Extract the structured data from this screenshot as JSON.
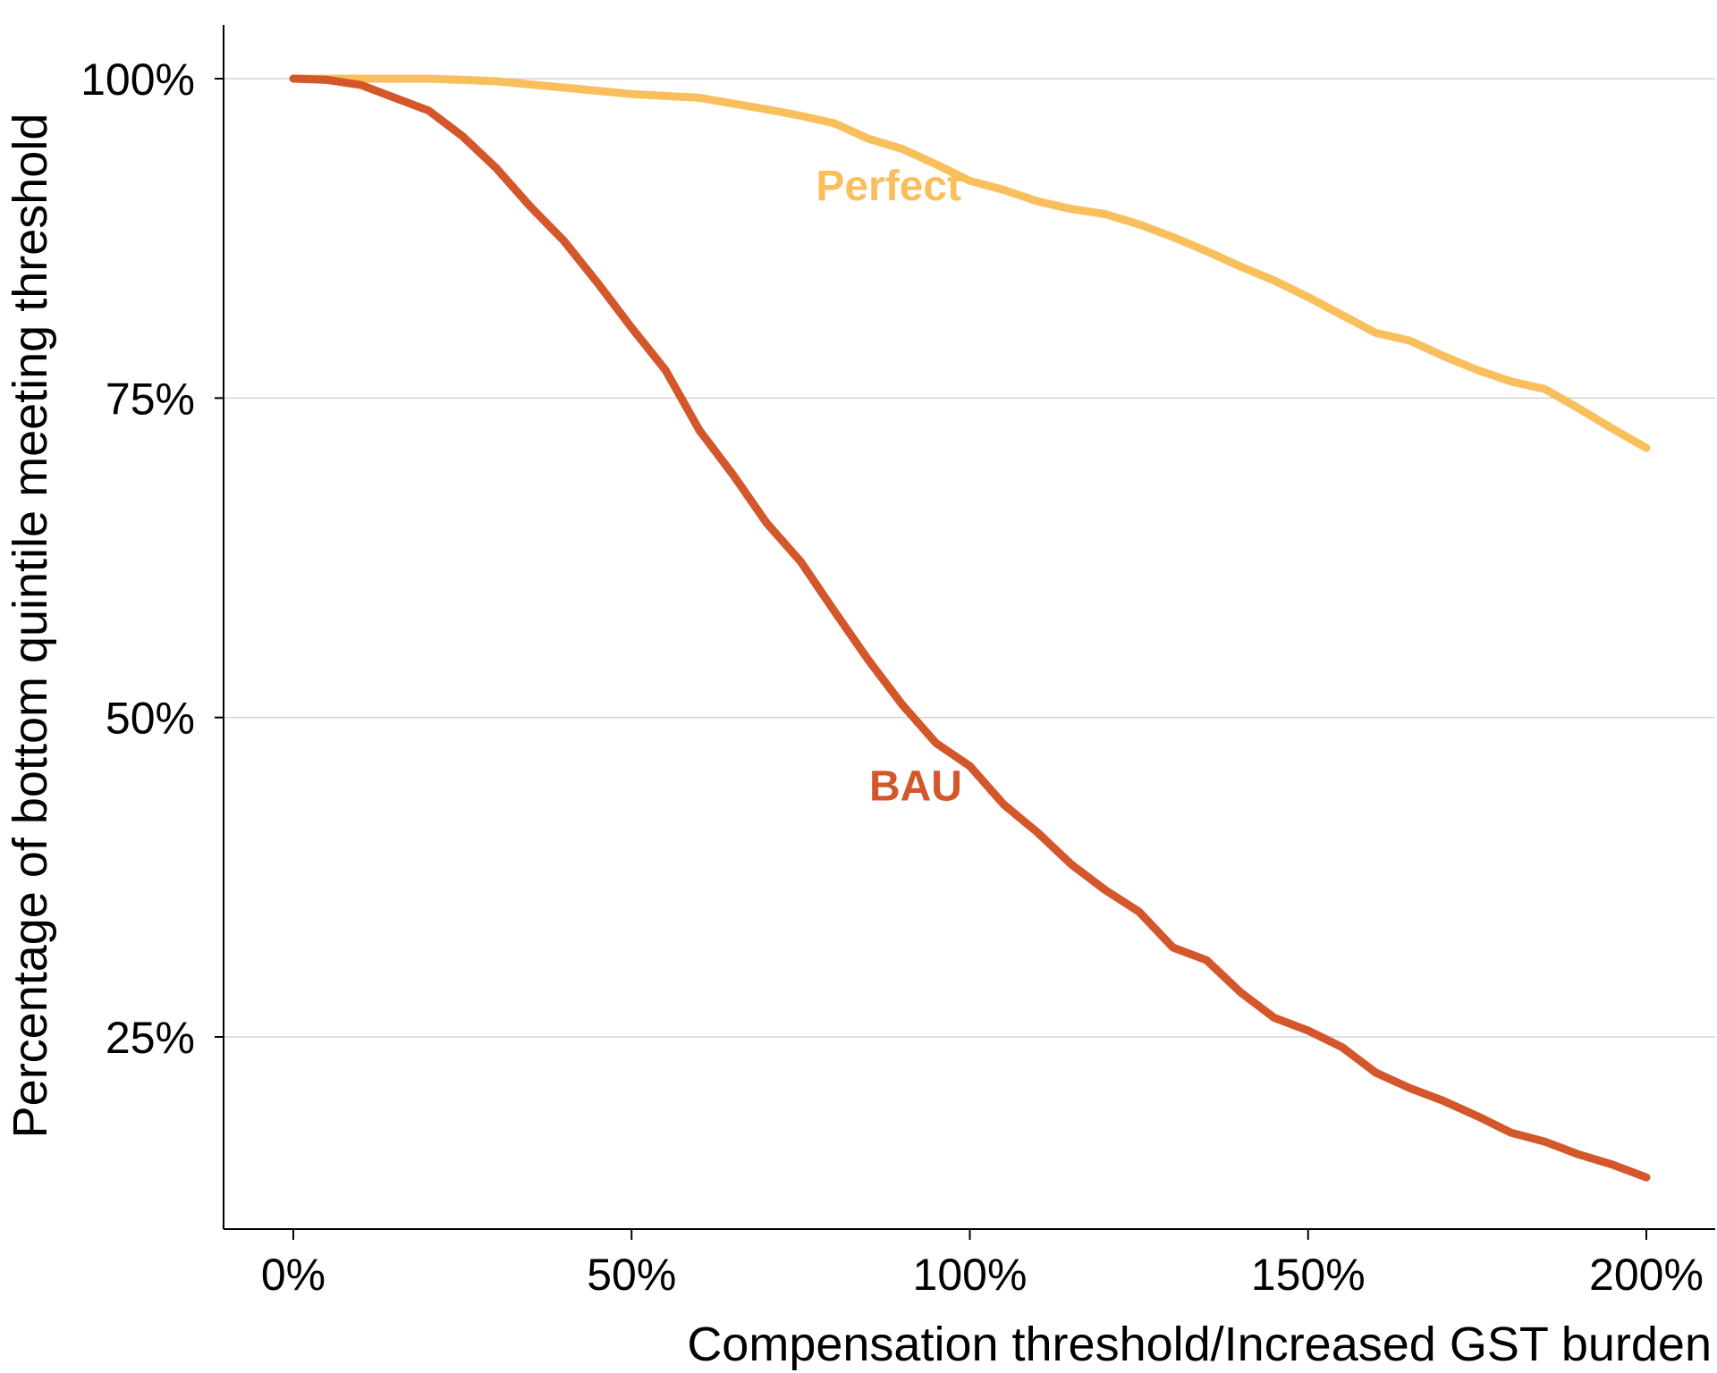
{
  "chart_data": {
    "type": "line",
    "title": "",
    "xlabel": "Compensation threshold/Increased GST burden",
    "ylabel": "Percentage of bottom quintile meeting threshold",
    "xlim": [
      -0.5,
      2.5
    ],
    "ylim": [
      0.1,
      1.0
    ],
    "x_ticks": [
      0,
      0.5,
      1.0,
      1.5,
      2.0
    ],
    "x_tick_labels": [
      "0%",
      "50%",
      "100%",
      "150%",
      "200%"
    ],
    "y_ticks": [
      0.25,
      0.5,
      0.75,
      1.0
    ],
    "y_tick_labels": [
      "25%",
      "50%",
      "75%",
      "100%"
    ],
    "grid": "horizontal",
    "series": [
      {
        "name": "Perfect",
        "color": "#f8bf5c",
        "label_at": [
          0.88,
          0.905
        ],
        "x": [
          0,
          0.1,
          0.2,
          0.25,
          0.3,
          0.4,
          0.5,
          0.6,
          0.7,
          0.75,
          0.8,
          0.85,
          0.9,
          0.95,
          1.0,
          1.05,
          1.1,
          1.15,
          1.2,
          1.25,
          1.3,
          1.35,
          1.4,
          1.45,
          1.5,
          1.55,
          1.6,
          1.65,
          1.7,
          1.75,
          1.8,
          1.85,
          1.9,
          1.95,
          2.0
        ],
        "y": [
          1.0,
          1.0,
          1.0,
          0.999,
          0.998,
          0.993,
          0.988,
          0.985,
          0.976,
          0.971,
          0.965,
          0.953,
          0.945,
          0.933,
          0.92,
          0.913,
          0.904,
          0.898,
          0.894,
          0.886,
          0.876,
          0.865,
          0.853,
          0.842,
          0.829,
          0.815,
          0.801,
          0.795,
          0.783,
          0.772,
          0.763,
          0.757,
          0.742,
          0.726,
          0.711
        ]
      },
      {
        "name": "BAU",
        "color": "#d4562b",
        "label_at": [
          0.92,
          0.435
        ],
        "x": [
          0,
          0.05,
          0.1,
          0.15,
          0.2,
          0.25,
          0.3,
          0.35,
          0.4,
          0.45,
          0.5,
          0.55,
          0.6,
          0.65,
          0.7,
          0.75,
          0.8,
          0.85,
          0.9,
          0.95,
          1.0,
          1.05,
          1.1,
          1.15,
          1.2,
          1.25,
          1.3,
          1.35,
          1.4,
          1.45,
          1.5,
          1.55,
          1.6,
          1.65,
          1.7,
          1.75,
          1.8,
          1.85,
          1.9,
          1.95,
          2.0
        ],
        "y": [
          1.0,
          0.999,
          0.995,
          0.985,
          0.975,
          0.955,
          0.93,
          0.9,
          0.873,
          0.84,
          0.805,
          0.772,
          0.725,
          0.69,
          0.652,
          0.622,
          0.583,
          0.545,
          0.51,
          0.48,
          0.462,
          0.432,
          0.41,
          0.385,
          0.365,
          0.348,
          0.32,
          0.31,
          0.285,
          0.265,
          0.255,
          0.242,
          0.222,
          0.21,
          0.2,
          0.188,
          0.175,
          0.168,
          0.158,
          0.15,
          0.14
        ]
      }
    ]
  }
}
